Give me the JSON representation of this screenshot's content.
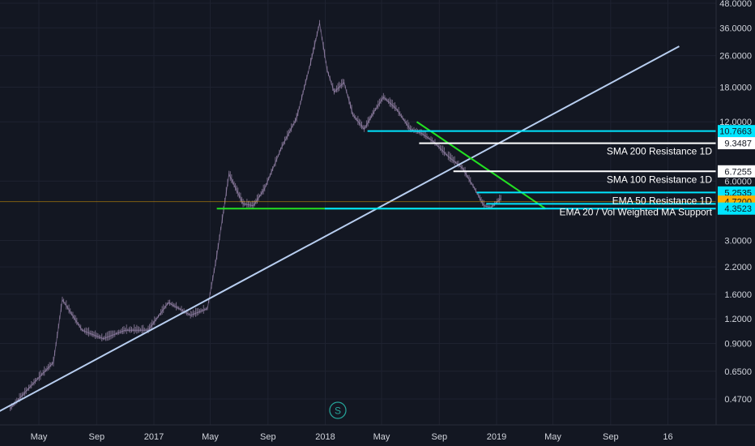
{
  "chart_data": {
    "type": "line",
    "scale": "log",
    "grid": true,
    "ylim": [
      0.4,
      48
    ],
    "y_ticks": [
      "48.0000",
      "36.0000",
      "26.0000",
      "18.0000",
      "12.0000",
      "6.0000",
      "3.0000",
      "2.2000",
      "1.6000",
      "1.2000",
      "0.9000",
      "0.6500",
      "0.4700"
    ],
    "x_ticks": [
      "May",
      "Sep",
      "2017",
      "May",
      "Sep",
      "2018",
      "May",
      "Sep",
      "2019",
      "May",
      "Sep",
      "16"
    ],
    "price_series": {
      "x": [
        "2016-03-01",
        "2016-04-15",
        "2016-06-01",
        "2016-06-20",
        "2016-08-01",
        "2016-09-15",
        "2016-11-01",
        "2016-12-20",
        "2017-02-01",
        "2017-03-20",
        "2017-04-25",
        "2017-05-15",
        "2017-06-10",
        "2017-07-10",
        "2017-08-01",
        "2017-08-25",
        "2017-10-01",
        "2017-11-01",
        "2017-12-01",
        "2017-12-20",
        "2018-01-05",
        "2018-01-20",
        "2018-02-10",
        "2018-03-01",
        "2018-03-25",
        "2018-04-15",
        "2018-05-05",
        "2018-06-01",
        "2018-07-01",
        "2018-07-25",
        "2018-08-20",
        "2018-09-20",
        "2018-10-20",
        "2018-11-15",
        "2018-12-05",
        "2018-12-20",
        "2019-01-10"
      ],
      "values": [
        0.42,
        0.55,
        0.72,
        1.5,
        1.05,
        0.95,
        1.05,
        1.05,
        1.45,
        1.25,
        1.35,
        2.5,
        6.5,
        4.6,
        4.5,
        5.5,
        9.0,
        12.5,
        24.0,
        38.0,
        22.0,
        17.0,
        19.0,
        13.0,
        11.0,
        13.5,
        16.0,
        14.0,
        11.0,
        10.5,
        9.5,
        8.0,
        7.0,
        5.5,
        4.5,
        4.4,
        4.9
      ]
    },
    "horizontal_levels": [
      {
        "value": 10.7663,
        "label_text": "10.7663",
        "color": "#00e5ff",
        "from": "2018-04-01"
      },
      {
        "value": 9.3487,
        "label_text": "9.3487",
        "color": "#ffffff",
        "from": "2018-07-20",
        "annotation": "SMA 200 Resistance 1D"
      },
      {
        "value": 6.7255,
        "label_text": "6.7255",
        "color": "#ffffff",
        "from": "2018-10-01",
        "annotation": "SMA 100 Resistance 1D"
      },
      {
        "value": 5.2535,
        "label_text": "5.2535",
        "color": "#00e5ff",
        "from": "2018-11-20",
        "annotation": "EMA 50 Resistance 1D"
      },
      {
        "value": 4.72,
        "label_text": "4.7200",
        "color": "#ffb000",
        "from": "2016-02-01",
        "style": "price"
      },
      {
        "value": 4.6,
        "label_text": "",
        "color": "#00e5ff",
        "from": "2018-12-10",
        "annotation": "EMA 20 / Vol Weighted MA Support"
      },
      {
        "value": 4.3523,
        "label_text": "4.3523",
        "color": "#00e5ff",
        "from": "2017-12-31"
      }
    ],
    "support_line": {
      "value": 4.3523,
      "color": "#22e022",
      "from": "2017-05-15",
      "to": "2019-04-15"
    },
    "triangle_upper": {
      "color": "#22e022",
      "from": [
        "2018-07-15",
        12.0
      ],
      "to": [
        "2019-04-15",
        4.3523
      ]
    },
    "trendline": {
      "color": "#b8cef0",
      "from": [
        "2016-02-01",
        0.4
      ],
      "to": [
        "2020-01-25",
        29.0
      ]
    },
    "series_badge": "S"
  },
  "colors": {
    "background": "#131722",
    "grid": "#1e2230",
    "candle": "#8a7a9a",
    "axis_text": "#d1d4dc"
  }
}
